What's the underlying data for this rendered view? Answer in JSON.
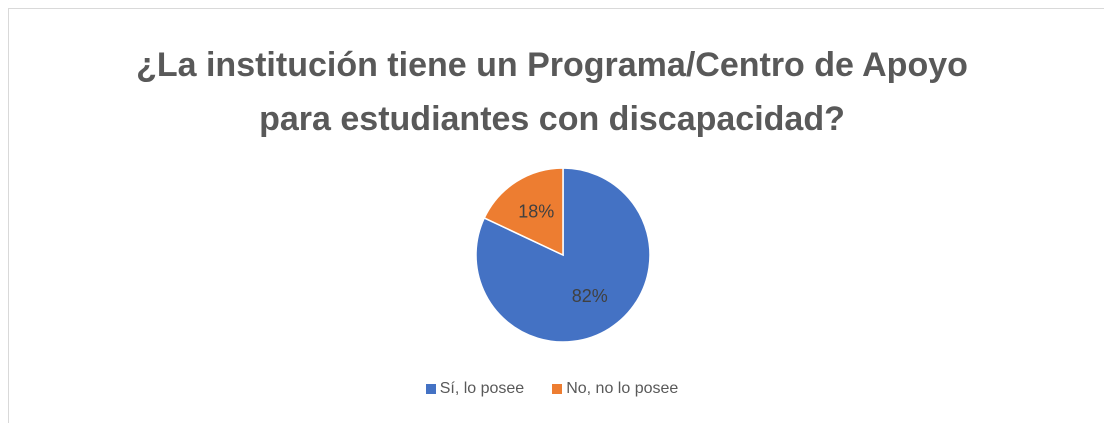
{
  "chart_data": {
    "type": "pie",
    "title": "¿La institución tiene un Programa/Centro de Apoyo para estudiantes con discapacidad?",
    "categories": [
      "Sí, lo posee",
      "No, no lo posee"
    ],
    "values": [
      82,
      18
    ],
    "value_labels": [
      "82%",
      "18%"
    ],
    "colors": [
      "#4472c4",
      "#ed7d31"
    ],
    "legend": "bottom"
  }
}
